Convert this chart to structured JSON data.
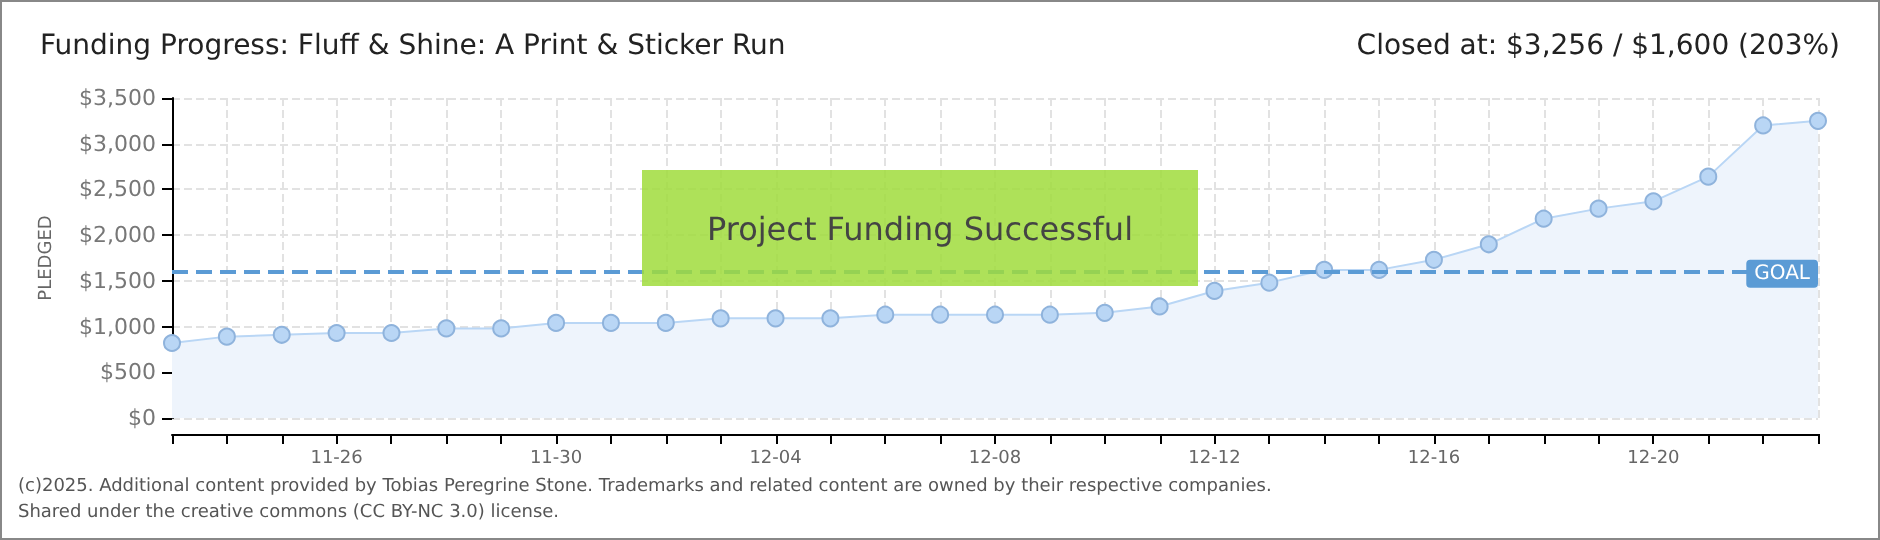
{
  "chart_data": {
    "type": "area",
    "title": "Funding Progress: Fluff & Shine: A Print & Sticker Run",
    "subtitle": "Closed at: $3,256 / $1,600 (203%)",
    "ylabel": "PLEDGED",
    "categories": [
      null,
      null,
      null,
      "11-26",
      null,
      null,
      null,
      "11-30",
      null,
      null,
      null,
      "12-04",
      null,
      null,
      null,
      "12-08",
      null,
      null,
      null,
      "12-12",
      null,
      null,
      null,
      "12-16",
      null,
      null,
      null,
      "12-20",
      null,
      null,
      null
    ],
    "series": [
      {
        "color": "#b9d6f5",
        "values": [
          820,
          890,
          910,
          930,
          930,
          980,
          980,
          1040,
          1040,
          1040,
          1090,
          1090,
          1090,
          1130,
          1130,
          1130,
          1130,
          1150,
          1220,
          1390,
          1480,
          1620,
          1620,
          1730,
          1900,
          2180,
          2290,
          2370,
          2640,
          3200,
          3250
        ]
      }
    ],
    "ylim": [
      0,
      3500
    ],
    "yticks": [
      {
        "value": 0,
        "label": "$0"
      },
      {
        "value": 500,
        "label": "$500"
      },
      {
        "value": 1000,
        "label": "$1,000"
      },
      {
        "value": 1500,
        "label": "$1,500"
      },
      {
        "value": 2000,
        "label": "$2,000"
      },
      {
        "value": 2500,
        "label": "$2,500"
      },
      {
        "value": 3000,
        "label": "$3,000"
      },
      {
        "value": 3500,
        "label": "$3,500"
      }
    ],
    "grid": true,
    "marker": "circle",
    "ref_lines": [
      {
        "axis": "y",
        "value": 1600,
        "label": "GOAL",
        "color": "#5b9bd5",
        "line_style": "dashed"
      }
    ],
    "annotations": [
      "Project Funding Successful",
      "(c)2025. Additional content provided by Tobias Peregrine Stone. Trademarks and related content are owned by their respective companies.",
      "Shared under the creative commons (CC BY-NC 3.0) license."
    ]
  }
}
